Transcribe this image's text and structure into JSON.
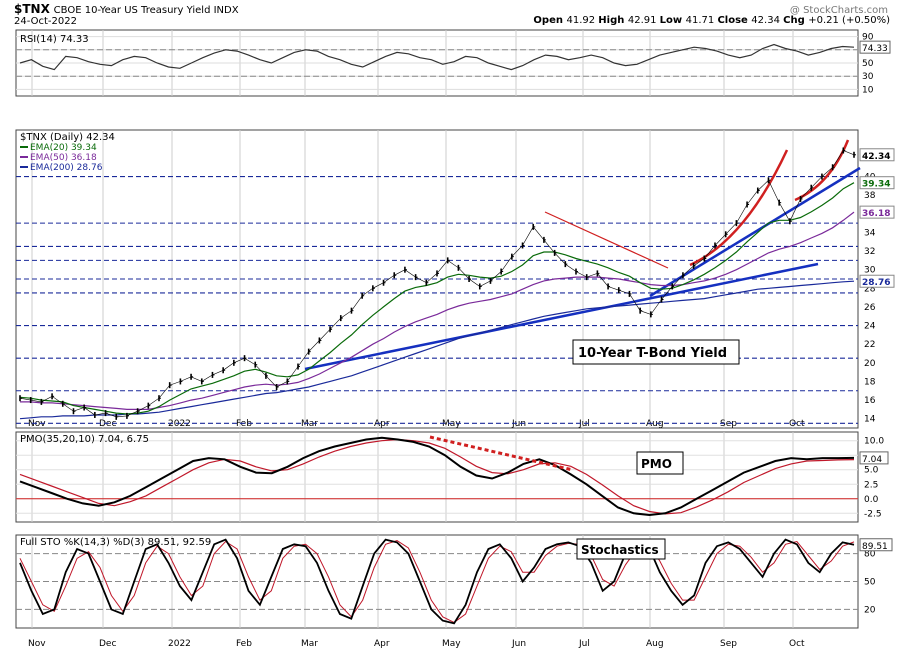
{
  "header": {
    "symbol": "$TNX",
    "name": "CBOE 10-Year US Treasury Yield  INDX",
    "date": "24-Oct-2022",
    "watermark": "@ StockCharts.com",
    "ohlc": [
      {
        "label": "Open",
        "value": "41.92"
      },
      {
        "label": "High",
        "value": "42.91"
      },
      {
        "label": "Low",
        "value": "41.71"
      },
      {
        "label": "Close",
        "value": "42.34"
      },
      {
        "label": "Chg",
        "value": "+0.21 (+0.50%)"
      }
    ]
  },
  "chart_data": [
    {
      "type": "line",
      "panel": "rsi",
      "title": "RSI(14) 74.33",
      "last_label": "74.33",
      "ylim": [
        0,
        100
      ],
      "y_ticks": [
        90,
        70,
        50,
        30,
        10
      ],
      "dashed_levels": [
        70,
        30
      ],
      "series": [
        {
          "name": "RSI(14)",
          "values": [
            50,
            55,
            45,
            40,
            60,
            58,
            52,
            48,
            46,
            55,
            60,
            58,
            50,
            44,
            42,
            50,
            58,
            65,
            70,
            68,
            62,
            55,
            50,
            58,
            66,
            70,
            68,
            60,
            55,
            48,
            44,
            52,
            60,
            66,
            64,
            58,
            55,
            48,
            52,
            60,
            58,
            50,
            45,
            40,
            46,
            55,
            62,
            60,
            55,
            58,
            62,
            58,
            50,
            46,
            48,
            55,
            62,
            66,
            70,
            74,
            72,
            68,
            62,
            58,
            62,
            72,
            78,
            72,
            68,
            62,
            66,
            72,
            75,
            74
          ]
        }
      ]
    },
    {
      "type": "line",
      "panel": "price",
      "title": "$TNX (Daily) 42.34",
      "ylim": [
        13,
        45
      ],
      "y_ticks": [
        14,
        16,
        18,
        20,
        22,
        24,
        26,
        28,
        30,
        32,
        34,
        36,
        38,
        40
      ],
      "x_ticks": [
        "Nov",
        "Dec",
        "2022",
        "Feb",
        "Mar",
        "Apr",
        "May",
        "Jun",
        "Jul",
        "Aug",
        "Sep",
        "Oct"
      ],
      "annotation": "10-Year T-Bond Yield",
      "support_levels": [
        13.5,
        17,
        20.5,
        24,
        27.5,
        29,
        31,
        32.5,
        35,
        40
      ],
      "last_labels": [
        {
          "text": "42.34",
          "value": 42.34,
          "color": "#000000"
        },
        {
          "text": "39.34",
          "value": 39.34,
          "color": "#0a6b0a"
        },
        {
          "text": "36.18",
          "value": 36.18,
          "color": "#7a2a9a"
        },
        {
          "text": "28.76",
          "value": 28.76,
          "color": "#1a2a9a"
        }
      ],
      "series": [
        {
          "name": "$TNX (Daily) 42.34",
          "color": "#000000",
          "values": [
            16.2,
            16.0,
            15.8,
            16.4,
            15.6,
            14.8,
            15.2,
            14.4,
            14.6,
            14.2,
            14.3,
            14.8,
            15.4,
            16.2,
            17.6,
            18.0,
            18.5,
            18.0,
            18.7,
            19.2,
            20.0,
            20.5,
            19.8,
            18.6,
            17.4,
            18.0,
            19.6,
            21.2,
            22.4,
            23.6,
            24.8,
            25.6,
            27.2,
            28.0,
            28.6,
            29.4,
            30.0,
            29.2,
            28.6,
            29.6,
            31.0,
            30.2,
            29.0,
            28.2,
            28.8,
            29.8,
            31.4,
            32.6,
            34.6,
            33.2,
            31.8,
            30.6,
            29.8,
            29.2,
            29.6,
            28.2,
            27.8,
            27.4,
            25.6,
            25.2,
            26.8,
            28.2,
            29.4,
            30.4,
            31.2,
            32.6,
            33.8,
            35.0,
            37.0,
            38.5,
            39.6,
            37.2,
            35.2,
            37.6,
            38.8,
            40.0,
            41.0,
            42.8,
            42.34
          ]
        },
        {
          "name": "EMA(20) 39.34",
          "color": "#0a6b0a",
          "values": [
            16.3,
            16.2,
            16.0,
            15.9,
            15.8,
            15.4,
            15.2,
            15.0,
            14.8,
            14.6,
            14.5,
            14.6,
            14.8,
            15.3,
            16.0,
            16.6,
            17.2,
            17.5,
            17.8,
            18.2,
            18.6,
            19.1,
            19.3,
            19.0,
            18.6,
            18.5,
            18.7,
            19.3,
            20.2,
            21.1,
            22.1,
            23.0,
            24.1,
            25.1,
            26.0,
            26.9,
            27.7,
            28.1,
            28.3,
            28.6,
            29.2,
            29.5,
            29.4,
            29.2,
            29.1,
            29.3,
            29.8,
            30.5,
            31.5,
            31.9,
            31.9,
            31.6,
            31.2,
            30.9,
            30.6,
            30.2,
            29.7,
            29.3,
            28.6,
            28.0,
            27.9,
            28.0,
            28.4,
            28.9,
            29.5,
            30.2,
            31.0,
            31.9,
            33.0,
            34.0,
            35.0,
            35.3,
            35.3,
            35.6,
            36.2,
            36.9,
            37.7,
            38.7,
            39.34
          ]
        },
        {
          "name": "EMA(50) 36.18",
          "color": "#7a2a9a",
          "values": [
            15.8,
            15.8,
            15.7,
            15.7,
            15.6,
            15.5,
            15.4,
            15.3,
            15.2,
            15.1,
            15.0,
            15.0,
            15.0,
            15.2,
            15.4,
            15.7,
            16.0,
            16.2,
            16.5,
            16.8,
            17.1,
            17.4,
            17.6,
            17.7,
            17.6,
            17.7,
            17.9,
            18.3,
            18.8,
            19.4,
            20.0,
            20.6,
            21.3,
            22.0,
            22.6,
            23.3,
            23.9,
            24.4,
            24.8,
            25.2,
            25.7,
            26.1,
            26.4,
            26.6,
            26.8,
            27.1,
            27.4,
            27.9,
            28.4,
            28.8,
            29.0,
            29.1,
            29.2,
            29.2,
            29.2,
            29.1,
            29.0,
            28.8,
            28.6,
            28.4,
            28.3,
            28.3,
            28.4,
            28.6,
            28.8,
            29.1,
            29.5,
            30.0,
            30.6,
            31.2,
            31.8,
            32.2,
            32.5,
            32.9,
            33.4,
            33.9,
            34.5,
            35.3,
            36.18
          ]
        },
        {
          "name": "EMA(200) 28.76",
          "color": "#1a2a9a",
          "values": [
            14.0,
            14.1,
            14.2,
            14.2,
            14.3,
            14.3,
            14.3,
            14.4,
            14.4,
            14.4,
            14.5,
            14.5,
            14.6,
            14.7,
            14.9,
            15.1,
            15.3,
            15.5,
            15.7,
            15.9,
            16.1,
            16.3,
            16.5,
            16.7,
            16.8,
            17.0,
            17.2,
            17.4,
            17.7,
            18.0,
            18.3,
            18.6,
            19.0,
            19.4,
            19.8,
            20.2,
            20.6,
            21.0,
            21.4,
            21.8,
            22.2,
            22.6,
            22.9,
            23.2,
            23.5,
            23.8,
            24.1,
            24.4,
            24.7,
            25.0,
            25.2,
            25.4,
            25.6,
            25.8,
            25.9,
            26.0,
            26.1,
            26.2,
            26.3,
            26.4,
            26.5,
            26.6,
            26.7,
            26.8,
            26.9,
            27.1,
            27.3,
            27.5,
            27.7,
            27.9,
            28.0,
            28.1,
            28.2,
            28.3,
            28.4,
            28.5,
            28.6,
            28.7,
            28.76
          ]
        }
      ]
    },
    {
      "type": "line",
      "panel": "pmo",
      "title": "PMO(35,20,10) 7.04, 6.75",
      "annotation": "PMO",
      "last_label": "7.04",
      "ylim": [
        -4,
        11.5
      ],
      "y_ticks": [
        "10.0",
        "7.5",
        "5.0",
        "2.5",
        "0.0",
        "-2.5"
      ],
      "series": [
        {
          "name": "PMO(35,20,10)",
          "color": "#000000",
          "values": [
            3.0,
            2.0,
            1.0,
            0.0,
            -0.8,
            -1.2,
            -0.6,
            0.5,
            2.0,
            3.5,
            5.0,
            6.5,
            7.0,
            6.8,
            5.5,
            4.5,
            4.4,
            5.5,
            7.0,
            8.2,
            9.0,
            9.6,
            10.2,
            10.5,
            10.2,
            9.8,
            9.0,
            7.5,
            5.5,
            4.0,
            3.5,
            4.5,
            6.0,
            6.8,
            5.8,
            4.2,
            2.5,
            0.5,
            -1.5,
            -2.5,
            -2.8,
            -2.5,
            -1.5,
            0.0,
            1.5,
            3.0,
            4.5,
            5.5,
            6.5,
            7.0,
            6.8,
            7.0,
            7.0,
            7.04
          ]
        },
        {
          "name": "Signal",
          "color": "#c0182a",
          "values": [
            4.2,
            3.2,
            2.2,
            1.2,
            0.2,
            -0.8,
            -1.2,
            -0.5,
            0.5,
            2.0,
            3.5,
            5.0,
            6.2,
            6.8,
            6.5,
            5.5,
            4.8,
            5.0,
            6.0,
            7.2,
            8.2,
            9.0,
            9.6,
            10.0,
            10.2,
            10.0,
            9.6,
            8.7,
            7.2,
            5.6,
            4.5,
            4.3,
            5.0,
            6.0,
            6.2,
            5.6,
            4.2,
            2.4,
            0.5,
            -1.2,
            -2.2,
            -2.6,
            -2.4,
            -1.4,
            -0.2,
            1.2,
            2.8,
            4.0,
            5.2,
            6.0,
            6.5,
            6.6,
            6.7,
            6.75
          ]
        }
      ]
    },
    {
      "type": "line",
      "panel": "sto",
      "title": "Full STO %K(14,3) %D(3) 89.51, 92.59",
      "annotation": "Stochastics",
      "last_label": "89.51",
      "ylim": [
        0,
        100
      ],
      "y_ticks": [
        80,
        50,
        20
      ],
      "series": [
        {
          "name": "%K(14,3)",
          "color": "#000000",
          "values": [
            70,
            40,
            15,
            20,
            60,
            85,
            80,
            50,
            20,
            15,
            50,
            85,
            90,
            70,
            45,
            30,
            60,
            90,
            95,
            75,
            40,
            25,
            55,
            85,
            90,
            88,
            70,
            40,
            15,
            10,
            45,
            80,
            95,
            92,
            80,
            50,
            20,
            8,
            5,
            25,
            60,
            85,
            90,
            75,
            50,
            65,
            85,
            90,
            92,
            88,
            70,
            40,
            50,
            80,
            90,
            88,
            60,
            40,
            25,
            35,
            70,
            88,
            92,
            85,
            70,
            55,
            80,
            95,
            90,
            70,
            60,
            80,
            92,
            89.51
          ]
        },
        {
          "name": "%D(3)",
          "color": "#c0182a",
          "values": [
            75,
            50,
            25,
            18,
            45,
            75,
            82,
            65,
            35,
            18,
            35,
            70,
            88,
            80,
            55,
            35,
            45,
            80,
            93,
            85,
            55,
            30,
            40,
            75,
            88,
            90,
            80,
            55,
            25,
            12,
            30,
            65,
            90,
            94,
            86,
            60,
            30,
            12,
            6,
            15,
            45,
            75,
            88,
            82,
            60,
            60,
            78,
            88,
            91,
            90,
            78,
            52,
            45,
            68,
            85,
            90,
            72,
            48,
            30,
            30,
            55,
            80,
            90,
            88,
            76,
            60,
            70,
            90,
            93,
            78,
            63,
            72,
            88,
            92.59
          ]
        }
      ]
    }
  ]
}
